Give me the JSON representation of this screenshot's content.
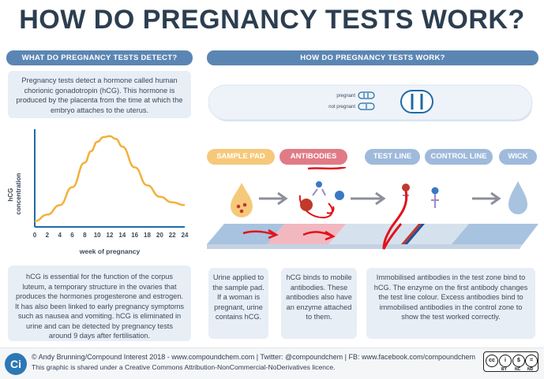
{
  "title": "HOW DO PREGNANCY TESTS WORK?",
  "left": {
    "header": "WHAT DO PREGNANCY TESTS DETECT?",
    "intro": "Pregnancy tests detect a hormone called human chorionic gonadotropin (hCG). This hormone is produced by the placenta from the time at which the embryo attaches to the uterus.",
    "detail": "hCG is essential for the function of the corpus luteum, a temporary structure in the ovaries that produces the hormones progesterone and estrogen. It has also been linked to early pregnancy symptoms such as nausea and vomiting. hCG is eliminated in urine and can be detected by pregnancy tests around 9 days after fertilisation."
  },
  "chart_data": {
    "type": "line",
    "title": "",
    "xlabel": "week of pregnancy",
    "ylabel": "hCG concentration",
    "x_ticks": [
      "0",
      "2",
      "4",
      "6",
      "8",
      "10",
      "12",
      "14",
      "16",
      "18",
      "20",
      "22",
      "24"
    ],
    "xlim": [
      0,
      24
    ],
    "ylim": [
      0,
      1
    ],
    "series": [
      {
        "x": [
          0,
          2,
          4,
          6,
          8,
          9,
          10,
          11,
          12,
          13,
          14,
          16,
          18,
          20,
          22,
          24
        ],
        "y": [
          0.06,
          0.13,
          0.23,
          0.42,
          0.68,
          0.8,
          0.9,
          0.95,
          0.96,
          0.93,
          0.85,
          0.63,
          0.44,
          0.32,
          0.26,
          0.23
        ],
        "color": "#f2b13a"
      }
    ],
    "grid": false
  },
  "right": {
    "header": "HOW DO PREGNANCY TESTS WORK?",
    "device": {
      "pregnant": "pregnant",
      "not_pregnant": "not pregnant"
    },
    "stages": [
      {
        "label": "SAMPLE PAD",
        "color": "#f6c97a"
      },
      {
        "label": "ANTIBODIES",
        "color": "#e07b86"
      },
      {
        "label": "TEST LINE",
        "color": "#9fbadb"
      },
      {
        "label": "CONTROL LINE",
        "color": "#9fbadb"
      },
      {
        "label": "WICK",
        "color": "#9fbadb"
      }
    ],
    "boxes": [
      "Urine applied to the sample pad. If a woman is pregnant, urine contains hCG.",
      "hCG binds to mobile antibodies. These antibodies also have an enzyme attached to them.",
      "Immobilised antibodies in the test zone bind to hCG. The enzyme on the first antibody changes the test line colour. Excess antibodies bind to immobilised antibodies in the control zone to show the test worked correctly."
    ]
  },
  "footer": {
    "logo": "Ci",
    "line1": "© Andy Brunning/Compound Interest 2018 - www.compoundchem.com | Twitter: @compoundchem | FB: www.facebook.com/compoundchem",
    "line2": "This graphic is shared under a Creative Commons Attribution-NonCommercial-NoDerivatives licence.",
    "cc": [
      "cc",
      "BY",
      "NC",
      "ND"
    ]
  }
}
